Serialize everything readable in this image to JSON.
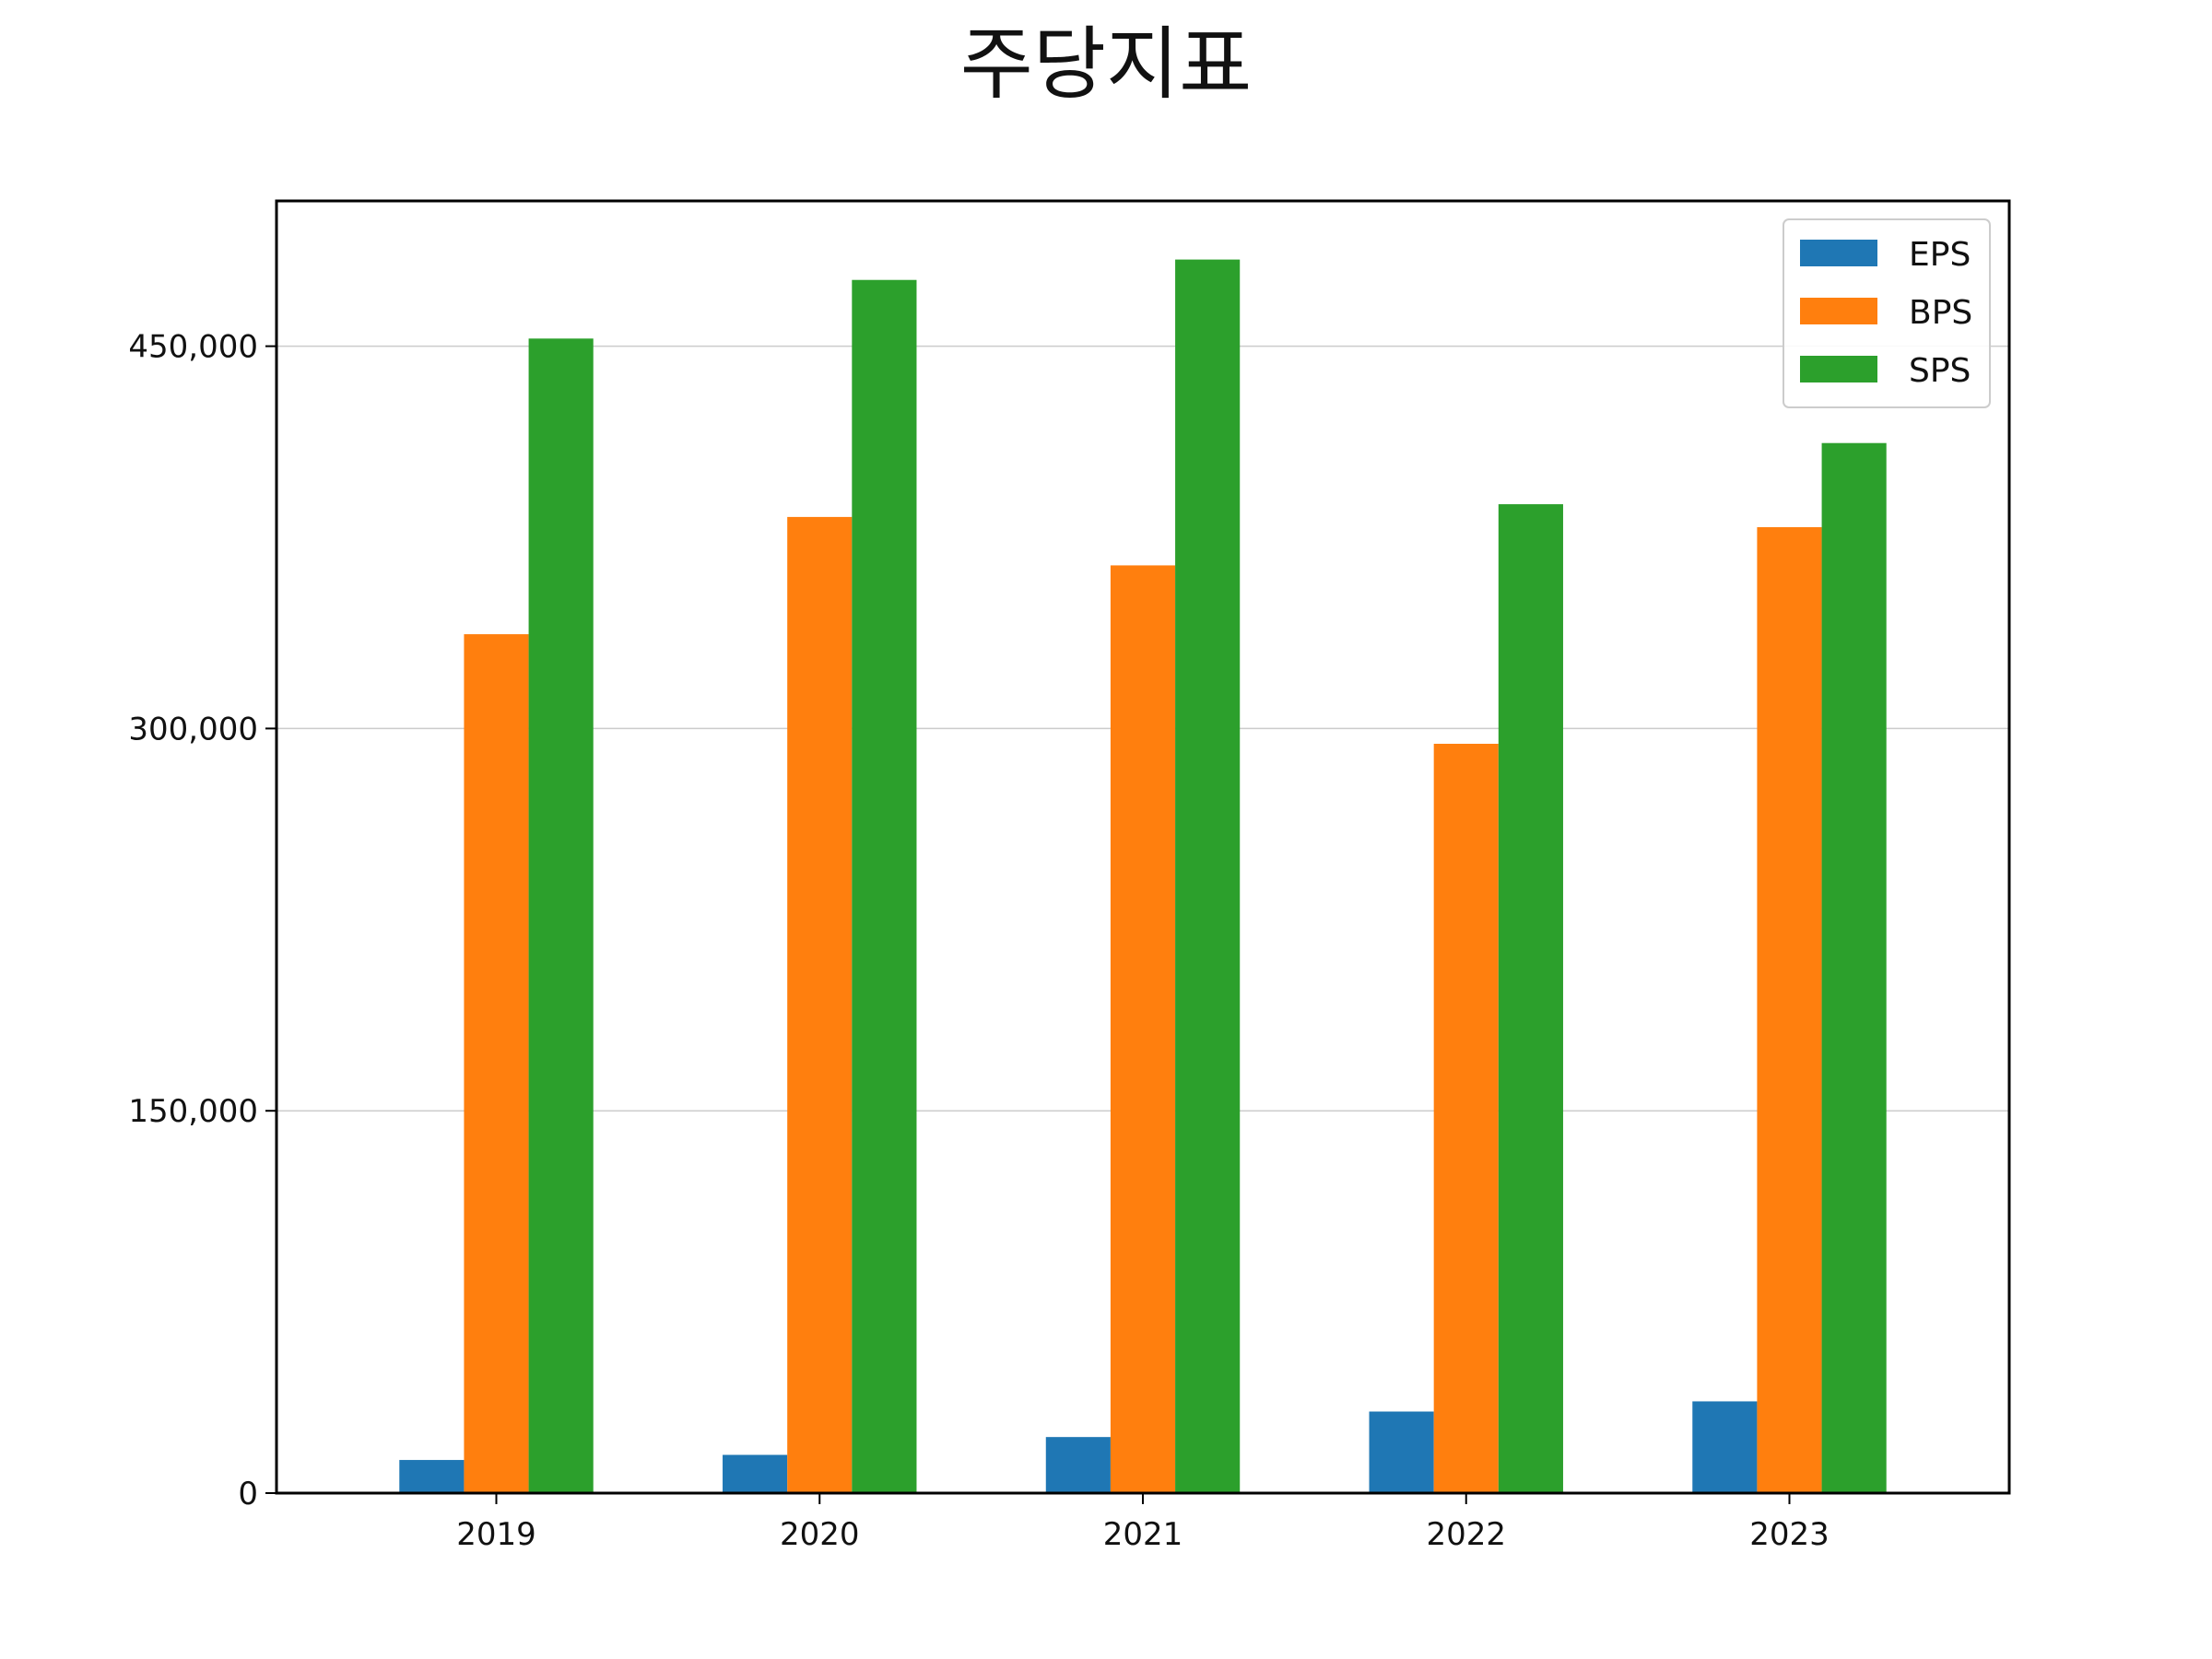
{
  "chart_data": {
    "type": "bar",
    "title": "주당지표",
    "xlabel": "",
    "ylabel": "",
    "categories": [
      "2019",
      "2020",
      "2021",
      "2022",
      "2023"
    ],
    "series": [
      {
        "name": "EPS",
        "color": "#1f77b4",
        "values": [
          13000,
          15000,
          22000,
          32000,
          36000
        ]
      },
      {
        "name": "BPS",
        "color": "#ff7f0e",
        "values": [
          337000,
          383000,
          364000,
          294000,
          379000
        ]
      },
      {
        "name": "SPS",
        "color": "#2ca02c",
        "values": [
          453000,
          476000,
          484000,
          388000,
          412000
        ]
      }
    ],
    "yticks": [
      0,
      150000,
      300000,
      450000
    ],
    "ytick_labels": [
      "0",
      "150,000",
      "300,000",
      "450,000"
    ],
    "ylim": [
      0,
      507000
    ],
    "grid": "y",
    "legend_position": "top-right"
  }
}
